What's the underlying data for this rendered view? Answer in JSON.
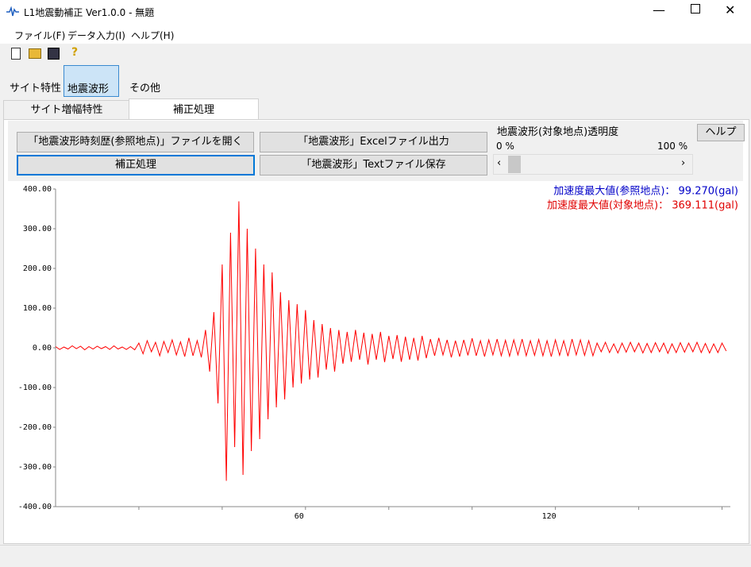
{
  "window": {
    "title": "L1地震動補正 Ver1.0.0 - 無題"
  },
  "menu": [
    "ファイル(F)",
    "データ入力(I)",
    "ヘルプ(H)"
  ],
  "toolbar": [
    "サイト特性",
    "地震波形",
    "その他"
  ],
  "tabs": [
    "サイト増幅特性",
    "補正処理"
  ],
  "buttons": {
    "open": "「地震波形時刻歴(参照地点)」ファイルを開く",
    "correct": "補正処理",
    "excel": "「地震波形」Excelファイル出力",
    "text": "「地震波形」Textファイル保存",
    "help": "ヘルプ"
  },
  "transparency": {
    "label": "地震波形(対象地点)透明度",
    "min_label": "0 %",
    "max_label": "100 %"
  },
  "chart_data": {
    "type": "line",
    "annotations": [
      {
        "text": "加速度最大値(参照地点)：  99.270(gal)",
        "color": "#0000c8"
      },
      {
        "text": "加速度最大値(対象地点)：  369.111(gal)",
        "color": "#e00000"
      }
    ],
    "xlim": [
      0,
      162
    ],
    "xticks": [
      60,
      120
    ],
    "x_minor_ticks": [
      20,
      40,
      80,
      100,
      140,
      160
    ],
    "ylim": [
      -400,
      400
    ],
    "yticks": [
      {
        "value": -400,
        "label": "-400.00"
      },
      {
        "value": -300,
        "label": "-300.00"
      },
      {
        "value": -200,
        "label": "-200.00"
      },
      {
        "value": -100,
        "label": "-100.00"
      },
      {
        "value": 0,
        "label": "0.00"
      },
      {
        "value": 100,
        "label": "100.00"
      },
      {
        "value": 200,
        "label": "200.00"
      },
      {
        "value": 300,
        "label": "300.00"
      },
      {
        "value": 400,
        "label": "400.00"
      }
    ],
    "x": [
      0,
      1,
      2,
      3,
      4,
      5,
      6,
      7,
      8,
      9,
      10,
      11,
      12,
      13,
      14,
      15,
      16,
      17,
      18,
      19,
      20,
      21,
      22,
      23,
      24,
      25,
      26,
      27,
      28,
      29,
      30,
      31,
      32,
      33,
      34,
      35,
      36,
      37,
      38,
      39,
      40,
      41,
      42,
      43,
      44,
      45,
      46,
      47,
      48,
      49,
      50,
      51,
      52,
      53,
      54,
      55,
      56,
      57,
      58,
      59,
      60,
      61,
      62,
      63,
      64,
      65,
      66,
      67,
      68,
      69,
      70,
      71,
      72,
      73,
      74,
      75,
      76,
      77,
      78,
      79,
      80,
      81,
      82,
      83,
      84,
      85,
      86,
      87,
      88,
      89,
      90,
      91,
      92,
      93,
      94,
      95,
      96,
      97,
      98,
      99,
      100,
      101,
      102,
      103,
      104,
      105,
      106,
      107,
      108,
      109,
      110,
      111,
      112,
      113,
      114,
      115,
      116,
      117,
      118,
      119,
      120,
      121,
      122,
      123,
      124,
      125,
      126,
      127,
      128,
      129,
      130,
      131,
      132,
      133,
      134,
      135,
      136,
      137,
      138,
      139,
      140,
      141,
      142,
      143,
      144,
      145,
      146,
      147,
      148,
      149,
      150,
      151,
      152,
      153,
      154,
      155,
      156,
      157,
      158,
      159,
      160,
      161
    ],
    "series": [
      {
        "color": "#ff0000",
        "values": [
          3,
          -4,
          2,
          -3,
          5,
          -2,
          4,
          -5,
          3,
          -3,
          4,
          -2,
          3,
          -4,
          5,
          -3,
          2,
          -4,
          3,
          -5,
          12,
          -15,
          18,
          -10,
          14,
          -20,
          16,
          -12,
          20,
          -18,
          15,
          -22,
          25,
          -20,
          18,
          -24,
          45,
          -60,
          90,
          -140,
          210,
          -335,
          290,
          -250,
          369,
          -320,
          300,
          -260,
          250,
          -230,
          210,
          -180,
          190,
          -150,
          140,
          -130,
          120,
          -100,
          110,
          -90,
          95,
          -80,
          70,
          -75,
          60,
          -55,
          50,
          -60,
          45,
          -40,
          40,
          -35,
          45,
          -30,
          38,
          -42,
          35,
          -30,
          40,
          -36,
          30,
          -28,
          32,
          -35,
          28,
          -30,
          25,
          -32,
          30,
          -26,
          22,
          -20,
          25,
          -18,
          20,
          -24,
          18,
          -22,
          20,
          -19,
          24,
          -20,
          18,
          -22,
          20,
          -18,
          22,
          -20,
          19,
          -21,
          20,
          -18,
          22,
          -20,
          18,
          -19,
          21,
          -20,
          18,
          -22,
          20,
          -19,
          18,
          -21,
          22,
          -18,
          20,
          -19,
          18,
          -20,
          12,
          -10,
          14,
          -12,
          10,
          -13,
          12,
          -11,
          14,
          -10,
          12,
          -13,
          11,
          -12,
          13,
          -10,
          12,
          -14,
          10,
          -12,
          13,
          -11,
          12,
          -10,
          14,
          -12,
          11,
          -13,
          10,
          -12,
          12,
          -8
        ]
      }
    ]
  }
}
